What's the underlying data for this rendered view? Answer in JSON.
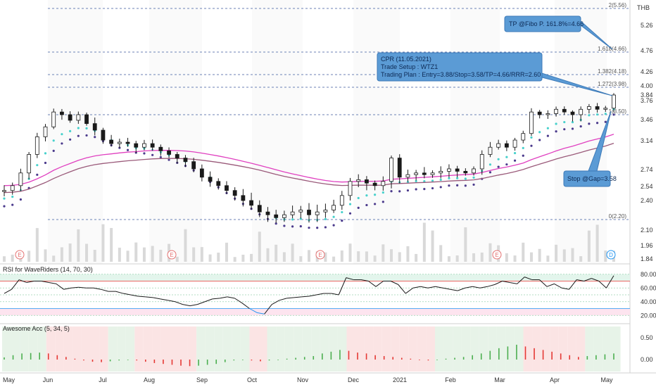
{
  "currency": "THB",
  "colors": {
    "candle": "#1a1a1a",
    "ema_fast": "#48d1cc",
    "ema_slow": "#4b3a8c",
    "ma_pink": "#e040c0",
    "ma_brown": "#9a5a7a",
    "callout_fill": "#5b9bd5",
    "rsi_line": "#1a1a1a",
    "rsi_high": "#e53935",
    "rsi_low": "#2196f3",
    "awesome_up": "#4caf50",
    "awesome_down": "#e53935"
  },
  "chart_data": {
    "type": "line",
    "price_axis": {
      "ticks": [
        "5.26",
        "4.76",
        "4.26",
        "4.00",
        "3.84",
        "3.76",
        "3.46",
        "3.14",
        "2.74",
        "2.54",
        "2.40",
        "2.10",
        "1.96",
        "1.84"
      ]
    },
    "x_axis": {
      "labels": [
        "May",
        "Jun",
        "Jul",
        "Aug",
        "Sep",
        "Oct",
        "Nov",
        "Dec",
        "2021",
        "Feb",
        "Mar",
        "Apr",
        "May"
      ]
    },
    "fibonacci_levels": [
      {
        "label": "2(5.56)",
        "value": 5.56
      },
      {
        "label": "1.618(4.66)",
        "value": 4.66
      },
      {
        "label": "1.382(4.18)",
        "value": 4.18
      },
      {
        "label": "1.272(3.98)",
        "value": 3.98
      },
      {
        "label": "1(3.50)",
        "value": 3.5
      },
      {
        "label": "0(2.20)",
        "value": 2.2
      }
    ],
    "earnings_markers": [
      "E",
      "E",
      "E",
      "E",
      "D"
    ],
    "closes": [
      2.5,
      2.55,
      2.7,
      2.95,
      3.2,
      3.35,
      3.55,
      3.5,
      3.45,
      3.5,
      3.4,
      3.3,
      3.15,
      3.1,
      3.12,
      3.1,
      3.05,
      3.1,
      3.05,
      3.0,
      2.95,
      2.9,
      2.85,
      2.75,
      2.65,
      2.6,
      2.55,
      2.5,
      2.45,
      2.4,
      2.35,
      2.28,
      2.25,
      2.22,
      2.25,
      2.28,
      2.3,
      2.25,
      2.28,
      2.3,
      2.35,
      2.45,
      2.6,
      2.62,
      2.58,
      2.55,
      2.6,
      2.9,
      2.65,
      2.68,
      2.7,
      2.68,
      2.7,
      2.72,
      2.75,
      2.72,
      2.7,
      2.75,
      2.95,
      3.05,
      3.1,
      3.05,
      3.15,
      3.25,
      3.55,
      3.5,
      3.52,
      3.6,
      3.55,
      3.5,
      3.6,
      3.65,
      3.6,
      3.62,
      3.84
    ]
  },
  "callouts": {
    "tp": "TP @Fibo P. 161.8%=4.66",
    "plan_line1": "CPR (11.05.2021)",
    "plan_line2": "Trade Setup : WTZ1",
    "plan_line3": "Trading Plan : Entry=3.88/Stop=3.58/TP=4.66/RRR=2.60",
    "stop": "Stop @Gap=3.58"
  },
  "rsi": {
    "title": "RSI for WaveRiders (14, 70, 30)",
    "ticks": [
      "80.00",
      "60.00",
      "40.00",
      "20.00"
    ],
    "values": [
      52,
      58,
      72,
      68,
      70,
      70,
      68,
      66,
      58,
      60,
      61,
      60,
      60,
      58,
      55,
      55,
      52,
      50,
      48,
      47,
      46,
      44,
      42,
      40,
      36,
      34,
      36,
      40,
      44,
      45,
      47,
      45,
      38,
      30,
      24,
      22,
      36,
      42,
      45,
      46,
      47,
      48,
      50,
      52,
      52,
      50,
      75,
      72,
      72,
      70,
      62,
      70,
      70,
      65,
      52,
      60,
      62,
      60,
      62,
      60,
      58,
      56,
      60,
      62,
      60,
      62,
      65,
      70,
      68,
      66,
      76,
      72,
      72,
      62,
      66,
      60,
      58,
      72,
      70,
      74,
      70,
      60,
      78
    ]
  },
  "awesome": {
    "title": "Awesome Acc (5, 34, 5)",
    "ticks": [
      "0.50",
      "0.00"
    ],
    "values": [
      0.05,
      0.1,
      0.14,
      0.15,
      0.16,
      0.14,
      0.1,
      0.06,
      0.02,
      -0.02,
      -0.05,
      -0.06,
      -0.04,
      -0.02,
      0.0,
      -0.02,
      -0.05,
      -0.08,
      -0.1,
      -0.12,
      -0.14,
      -0.15,
      -0.14,
      -0.12,
      -0.1,
      -0.06,
      -0.02,
      0.0,
      -0.02,
      -0.04,
      -0.02,
      0.0,
      0.02,
      0.04,
      0.06,
      0.08,
      0.14,
      0.18,
      0.22,
      0.2,
      0.16,
      0.14,
      0.1,
      0.08,
      0.06,
      0.04,
      0.02,
      0.0,
      -0.02,
      0.0,
      0.02,
      0.04,
      0.06,
      0.1,
      0.14,
      0.2,
      0.26,
      0.3,
      0.34,
      0.3,
      0.26,
      0.22,
      0.18,
      0.14,
      0.1,
      0.06,
      0.08,
      0.1,
      0.12,
      0.14
    ]
  }
}
